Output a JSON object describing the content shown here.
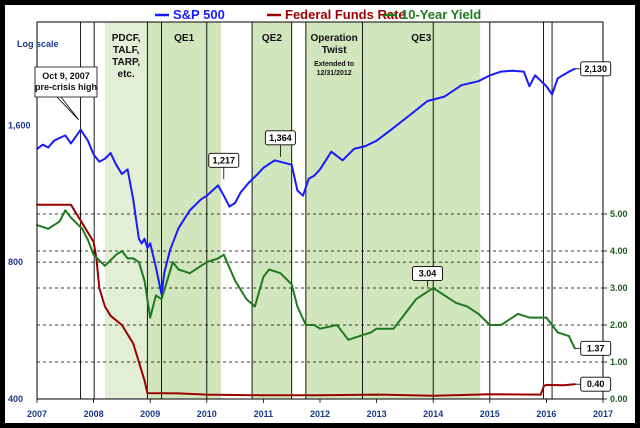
{
  "chart_data": {
    "type": "line",
    "legend": [
      {
        "name": "S&P 500",
        "color": "#1a1aff"
      },
      {
        "name": "Federal Funds Rate",
        "color": "#9b0000"
      },
      {
        "name": "10-Year Yield",
        "color": "#1e7a1e"
      }
    ],
    "left_axis": {
      "label": "Log scale",
      "ticks": [
        "1,600",
        "800",
        "400"
      ],
      "tick_values": [
        1600,
        800,
        400
      ],
      "scale": "log",
      "ylim": [
        400,
        2700
      ]
    },
    "right_axis": {
      "ticks": [
        "5.00",
        "4.00",
        "3.00",
        "2.00",
        "1.00",
        "0.00"
      ],
      "tick_values": [
        5,
        4,
        3,
        2,
        1,
        0
      ],
      "ylim": [
        0,
        5
      ]
    },
    "x_axis": {
      "ticks": [
        "2007",
        "2008",
        "2009",
        "2010",
        "2011",
        "2012",
        "2013",
        "2014",
        "2015",
        "2016",
        "2017"
      ],
      "xlim": [
        2007.0,
        2017.0
      ]
    },
    "grid": {
      "horizontal_dashed": true,
      "vertical_lines": true
    },
    "shaded_regions": [
      {
        "label": "PDCF,\nTALF,\nTARP,\netc.",
        "start": 2008.2,
        "end": 2008.95,
        "color": "#e2efd6"
      },
      {
        "label": "QE1",
        "start": 2008.95,
        "end": 2010.25,
        "color": "#d2e6bd"
      },
      {
        "label": "QE2",
        "start": 2010.8,
        "end": 2011.5,
        "color": "#d2e6bd"
      },
      {
        "label": "Operation\nTwist",
        "sublabel": "Extended to\n12/31/2012",
        "start": 2011.75,
        "end": 2012.75,
        "color": "#d2e6bd"
      },
      {
        "label": "QE3",
        "start": 2012.75,
        "end": 2014.83,
        "color": "#d2e6bd"
      }
    ],
    "event_lines": [
      2007.77,
      2008.01,
      2008.95,
      2009.2,
      2010.0,
      2010.8,
      2011.5,
      2011.75,
      2012.75,
      2014.0,
      2015.0,
      2015.95,
      2016.1
    ],
    "series": [
      {
        "name": "S&P 500",
        "axis": "left",
        "color": "#1a1aff",
        "x": [
          2007.0,
          2007.1,
          2007.2,
          2007.3,
          2007.4,
          2007.5,
          2007.6,
          2007.77,
          2007.9,
          2008.0,
          2008.1,
          2008.2,
          2008.3,
          2008.4,
          2008.5,
          2008.6,
          2008.7,
          2008.8,
          2008.85,
          2008.9,
          2008.95,
          2009.0,
          2009.1,
          2009.2,
          2009.25,
          2009.35,
          2009.5,
          2009.7,
          2009.9,
          2010.0,
          2010.2,
          2010.3,
          2010.4,
          2010.5,
          2010.6,
          2010.75,
          2010.9,
          2011.0,
          2011.2,
          2011.3,
          2011.5,
          2011.6,
          2011.7,
          2011.8,
          2011.9,
          2012.0,
          2012.2,
          2012.4,
          2012.6,
          2012.8,
          2013.0,
          2013.3,
          2013.6,
          2013.9,
          2014.2,
          2014.5,
          2014.8,
          2015.0,
          2015.2,
          2015.4,
          2015.6,
          2015.7,
          2015.8,
          2016.0,
          2016.1,
          2016.2,
          2016.4,
          2016.5
        ],
        "values": [
          1420,
          1450,
          1430,
          1480,
          1500,
          1520,
          1460,
          1565,
          1480,
          1380,
          1330,
          1350,
          1390,
          1310,
          1250,
          1280,
          1100,
          900,
          880,
          900,
          860,
          880,
          780,
          680,
          760,
          850,
          950,
          1040,
          1100,
          1120,
          1180,
          1120,
          1060,
          1080,
          1140,
          1200,
          1250,
          1290,
          1340,
          1330,
          1310,
          1150,
          1120,
          1220,
          1240,
          1280,
          1400,
          1340,
          1420,
          1440,
          1480,
          1580,
          1690,
          1810,
          1850,
          1960,
          2000,
          2060,
          2100,
          2110,
          2100,
          1950,
          2060,
          1950,
          1870,
          2030,
          2100,
          2130
        ]
      },
      {
        "name": "Federal Funds Rate",
        "axis": "right",
        "color": "#9b0000",
        "x": [
          2007.0,
          2007.6,
          2007.7,
          2007.8,
          2007.9,
          2008.0,
          2008.05,
          2008.1,
          2008.2,
          2008.3,
          2008.5,
          2008.7,
          2008.8,
          2008.9,
          2008.95,
          2009.5,
          2010.0,
          2011.0,
          2012.0,
          2013.0,
          2014.0,
          2015.0,
          2015.9,
          2015.96,
          2016.0,
          2016.3,
          2016.5
        ],
        "values": [
          5.25,
          5.25,
          5.0,
          4.75,
          4.5,
          4.25,
          3.8,
          3.0,
          2.5,
          2.25,
          2.0,
          1.5,
          1.0,
          0.5,
          0.16,
          0.15,
          0.12,
          0.1,
          0.1,
          0.12,
          0.09,
          0.13,
          0.12,
          0.36,
          0.38,
          0.37,
          0.4
        ]
      },
      {
        "name": "10-Year Yield",
        "axis": "right",
        "color": "#1e7a1e",
        "x": [
          2007.0,
          2007.2,
          2007.4,
          2007.5,
          2007.6,
          2007.8,
          2007.9,
          2008.0,
          2008.2,
          2008.4,
          2008.5,
          2008.6,
          2008.7,
          2008.8,
          2008.9,
          2009.0,
          2009.1,
          2009.2,
          2009.3,
          2009.4,
          2009.5,
          2009.7,
          2009.9,
          2010.0,
          2010.2,
          2010.3,
          2010.5,
          2010.7,
          2010.85,
          2011.0,
          2011.1,
          2011.3,
          2011.5,
          2011.6,
          2011.75,
          2011.9,
          2012.0,
          2012.3,
          2012.5,
          2012.7,
          2012.9,
          2013.0,
          2013.3,
          2013.5,
          2013.7,
          2013.9,
          2014.0,
          2014.2,
          2014.4,
          2014.6,
          2014.8,
          2015.0,
          2015.2,
          2015.4,
          2015.5,
          2015.7,
          2015.9,
          2016.0,
          2016.2,
          2016.4,
          2016.5
        ],
        "values": [
          4.7,
          4.6,
          4.8,
          5.1,
          4.9,
          4.6,
          4.3,
          3.9,
          3.6,
          3.9,
          4.0,
          3.8,
          3.8,
          3.7,
          3.2,
          2.2,
          2.8,
          2.7,
          3.2,
          3.7,
          3.5,
          3.4,
          3.6,
          3.7,
          3.8,
          3.9,
          3.2,
          2.7,
          2.5,
          3.3,
          3.5,
          3.4,
          3.1,
          2.5,
          2.0,
          2.0,
          1.9,
          2.0,
          1.6,
          1.7,
          1.8,
          1.9,
          1.9,
          2.3,
          2.7,
          2.9,
          3.0,
          2.8,
          2.6,
          2.5,
          2.3,
          2.0,
          2.0,
          2.2,
          2.3,
          2.2,
          2.2,
          2.2,
          1.8,
          1.7,
          1.37
        ]
      }
    ],
    "annotations": [
      {
        "text": "Oct 9, 2007\npre-crisis high",
        "x": 2007.77,
        "y": 1565,
        "axis": "left"
      },
      {
        "text": "1,217",
        "x": 2010.3,
        "y": 1217,
        "axis": "left",
        "boxed": true
      },
      {
        "text": "1,364",
        "x": 2011.3,
        "y": 1364,
        "axis": "left",
        "boxed": true
      },
      {
        "text": "2,130",
        "x": 2016.5,
        "y": 2130,
        "axis": "left",
        "boxed": true
      },
      {
        "text": "3.04",
        "x": 2013.9,
        "y": 3.04,
        "axis": "right",
        "boxed": true
      },
      {
        "text": "1.37",
        "x": 2016.5,
        "y": 1.37,
        "axis": "right",
        "boxed": true
      },
      {
        "text": "0.40",
        "x": 2016.5,
        "y": 0.4,
        "axis": "right",
        "boxed": true
      }
    ]
  }
}
